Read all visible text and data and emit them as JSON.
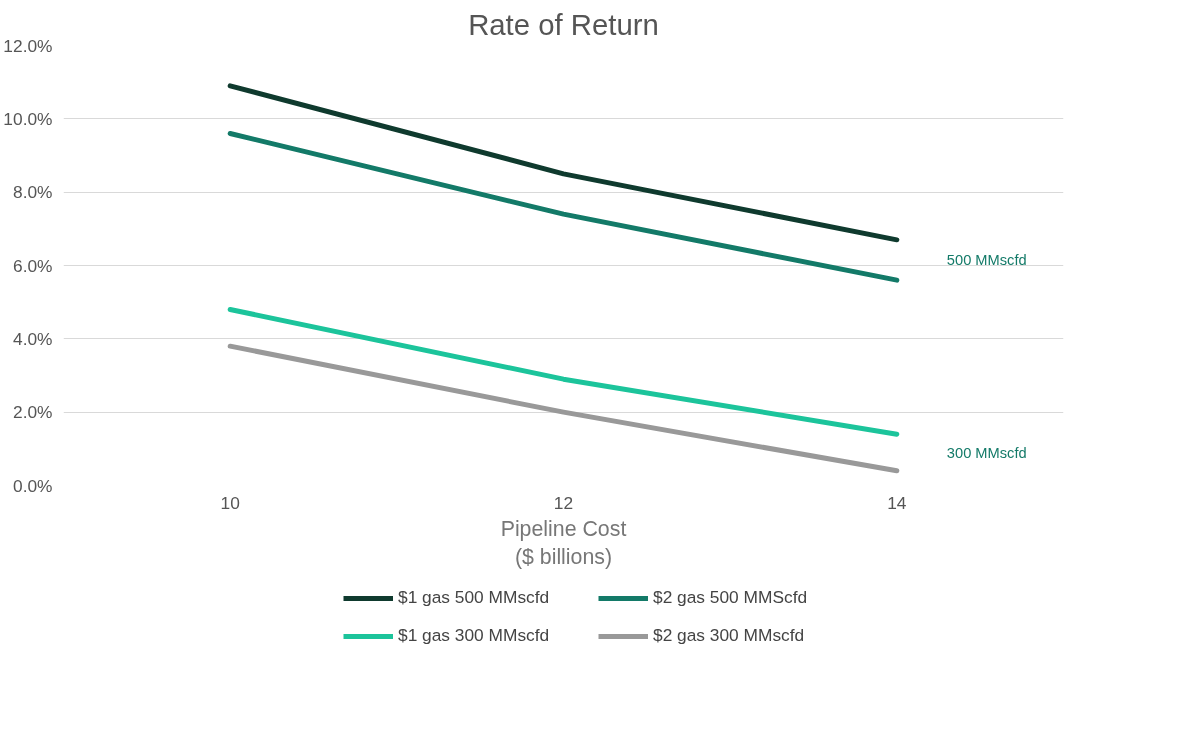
{
  "chart_data": {
    "type": "line",
    "title": "Rate of Return",
    "xlabel": "Pipeline Cost\n($ billions)",
    "x": [
      10,
      12,
      14
    ],
    "xlim": [
      9,
      15
    ],
    "xticks": [
      10,
      12,
      14
    ],
    "ylim": [
      0,
      12
    ],
    "yticks": [
      {
        "value": 0,
        "label": "0.0%"
      },
      {
        "value": 2,
        "label": "2.0%"
      },
      {
        "value": 4,
        "label": "4.0%"
      },
      {
        "value": 6,
        "label": "6.0%"
      },
      {
        "value": 8,
        "label": "8.0%"
      },
      {
        "value": 10,
        "label": "10.0%"
      },
      {
        "value": 12,
        "label": "12.0%"
      }
    ],
    "grid": "y",
    "legend": "bottom",
    "marker": "none",
    "line_style": "solid",
    "series": [
      {
        "name": "$1 gas 500 MMscfd",
        "color": "#0f3a2e",
        "values": [
          10.9,
          8.5,
          6.7
        ]
      },
      {
        "name": "$2 gas 500 MMScfd",
        "color": "#137a68",
        "values": [
          9.6,
          7.4,
          5.6
        ]
      },
      {
        "name": "$1 gas 300 MMscfd",
        "color": "#1cc49b",
        "values": [
          4.8,
          2.9,
          1.4
        ]
      },
      {
        "name": "$2 gas 300 MMscfd",
        "color": "#999999",
        "values": [
          3.8,
          2.0,
          0.4
        ]
      }
    ],
    "annotations": [
      "500 MMscfd",
      "300 MMscfd"
    ]
  }
}
